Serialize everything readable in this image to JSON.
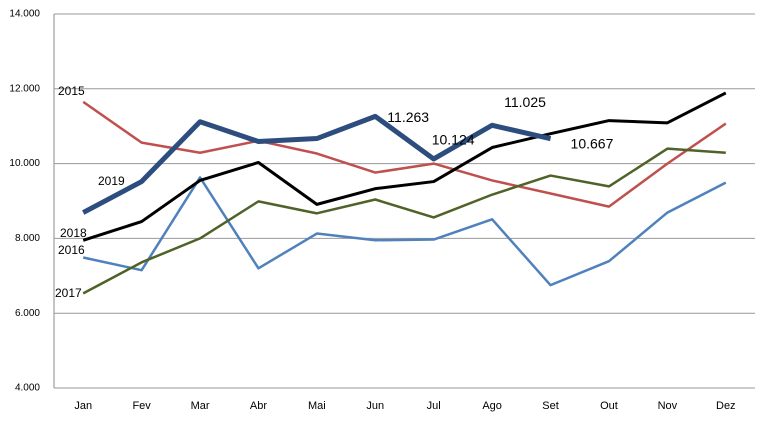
{
  "chart_data": {
    "type": "line",
    "categories": [
      "Jan",
      "Fev",
      "Mar",
      "Abr",
      "Mai",
      "Jun",
      "Jul",
      "Ago",
      "Set",
      "Out",
      "Nov",
      "Dez"
    ],
    "ylim": [
      4000,
      14000
    ],
    "yticks": [
      {
        "value": 4000,
        "label": "4.000"
      },
      {
        "value": 6000,
        "label": "6.000"
      },
      {
        "value": 8000,
        "label": "8.000"
      },
      {
        "value": 10000,
        "label": "10.000"
      },
      {
        "value": 12000,
        "label": "12.000"
      },
      {
        "value": 14000,
        "label": "14.000"
      }
    ],
    "grid": true,
    "series": [
      {
        "name": "2015",
        "color": "#c0504d",
        "width": 2.5,
        "values": [
          11650,
          10560,
          10290,
          10610,
          10270,
          9760,
          10000,
          9550,
          9200,
          8850,
          10000,
          11070
        ]
      },
      {
        "name": "2016",
        "color": "#4f81bd",
        "width": 2.5,
        "values": [
          7490,
          7150,
          9630,
          7200,
          8130,
          7950,
          7970,
          8510,
          6750,
          7390,
          8690,
          9490
        ]
      },
      {
        "name": "2017",
        "color": "#4f6228",
        "width": 2.5,
        "values": [
          6530,
          7360,
          8000,
          8990,
          8670,
          9040,
          8560,
          9170,
          9680,
          9390,
          10400,
          10290
        ]
      },
      {
        "name": "2018",
        "color": "#000000",
        "width": 3,
        "values": [
          7950,
          8450,
          9550,
          10030,
          8910,
          9330,
          9520,
          10430,
          10800,
          11150,
          11090,
          11890
        ]
      },
      {
        "name": "2019",
        "color": "#2c4d7d",
        "width": 5,
        "values": [
          8690,
          9520,
          11120,
          10590,
          10670,
          11263,
          10124,
          11025,
          10667,
          null,
          null,
          null
        ],
        "value_labels": [
          null,
          null,
          null,
          null,
          null,
          "11.263",
          "10.124",
          "11.025",
          "10.667",
          null,
          null,
          null
        ]
      }
    ]
  }
}
